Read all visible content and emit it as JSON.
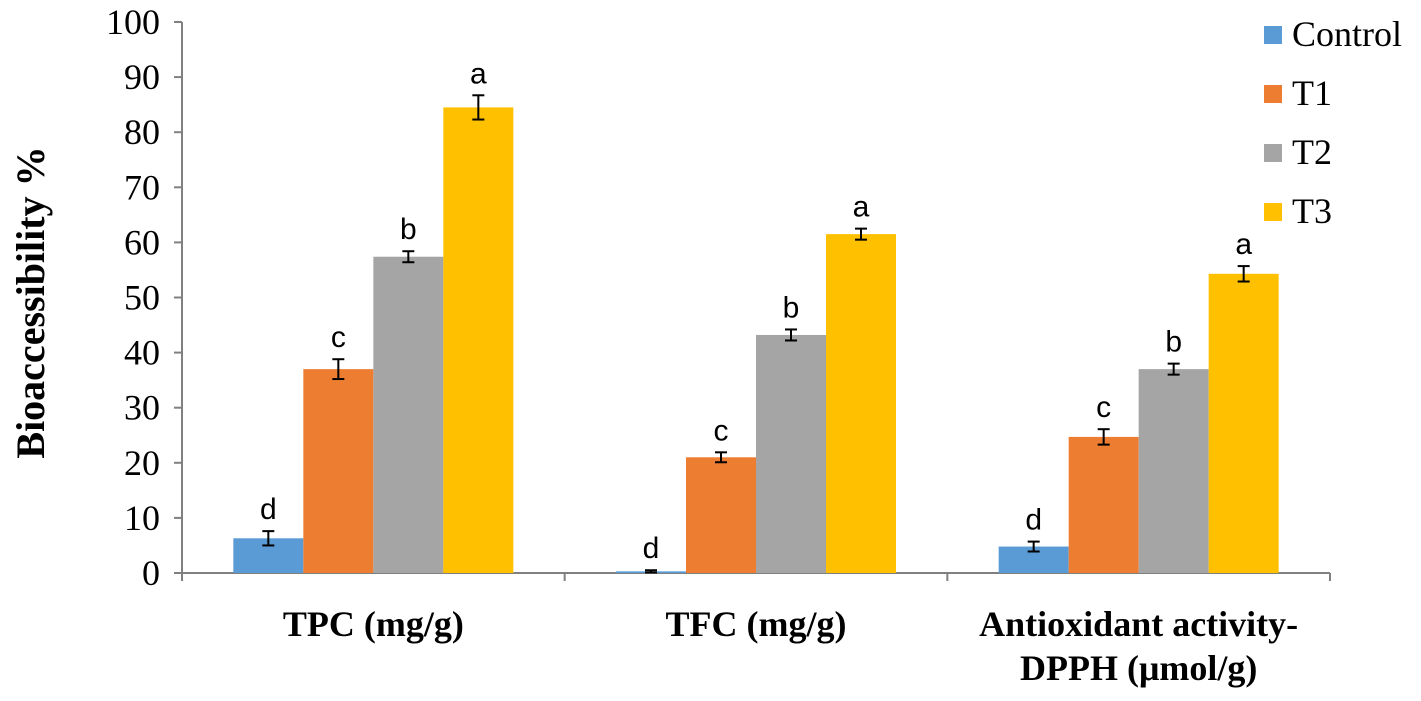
{
  "chart_data": {
    "type": "bar",
    "title": "",
    "xlabel": "",
    "ylabel": "Bioaccessibility  %",
    "ylim": [
      0,
      100
    ],
    "yticks": [
      0,
      10,
      20,
      30,
      40,
      50,
      60,
      70,
      80,
      90,
      100
    ],
    "categories": [
      [
        "TPC (mg/g)"
      ],
      [
        "TFC (mg/g)"
      ],
      [
        "Antioxidant activity-",
        "DPPH (μmol/g)"
      ]
    ],
    "legend_position": "top-right",
    "series": [
      {
        "name": "Control",
        "color": "#5B9BD5",
        "values": [
          6.3,
          0.3,
          4.8
        ],
        "errors": [
          1.3,
          0.2,
          0.9
        ],
        "letters": [
          "d",
          "d",
          "d"
        ]
      },
      {
        "name": "T1",
        "color": "#ED7D31",
        "values": [
          37,
          21,
          24.7
        ],
        "errors": [
          1.8,
          0.9,
          1.4
        ],
        "letters": [
          "c",
          "c",
          "c"
        ]
      },
      {
        "name": "T2",
        "color": "#A5A5A5",
        "values": [
          57.4,
          43.2,
          37
        ],
        "errors": [
          1,
          1,
          1
        ],
        "letters": [
          "b",
          "b",
          "b"
        ]
      },
      {
        "name": "T3",
        "color": "#FFC000",
        "values": [
          84.5,
          61.5,
          54.3
        ],
        "errors": [
          2.2,
          1,
          1.4
        ],
        "letters": [
          "a",
          "a",
          "a"
        ]
      }
    ]
  }
}
